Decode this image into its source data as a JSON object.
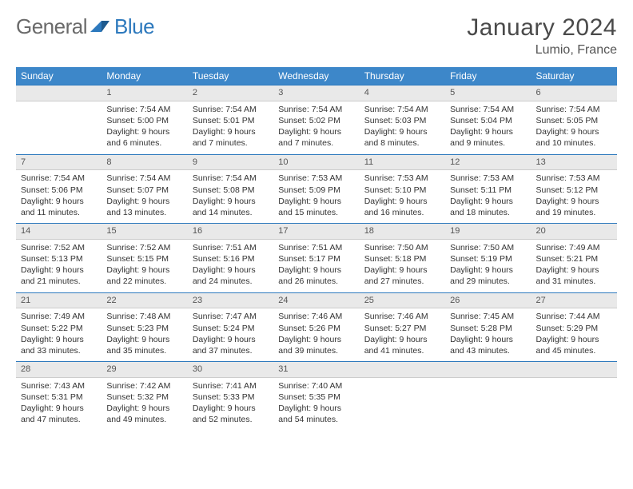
{
  "logo": {
    "word1": "General",
    "word2": "Blue",
    "accent_color": "#2d79bd",
    "grey_color": "#6a6a6a"
  },
  "title": "January 2024",
  "location": "Lumio, France",
  "colors": {
    "header_bg": "#3d87c9",
    "header_text": "#ffffff",
    "divider_blue": "#2d79bd",
    "daynum_bg": "#e9e9e9",
    "text": "#333333"
  },
  "weekdays": [
    "Sunday",
    "Monday",
    "Tuesday",
    "Wednesday",
    "Thursday",
    "Friday",
    "Saturday"
  ],
  "first_weekday_index": 1,
  "days": [
    {
      "n": 1,
      "sunrise": "7:54 AM",
      "sunset": "5:00 PM",
      "daylight": "9 hours and 6 minutes."
    },
    {
      "n": 2,
      "sunrise": "7:54 AM",
      "sunset": "5:01 PM",
      "daylight": "9 hours and 7 minutes."
    },
    {
      "n": 3,
      "sunrise": "7:54 AM",
      "sunset": "5:02 PM",
      "daylight": "9 hours and 7 minutes."
    },
    {
      "n": 4,
      "sunrise": "7:54 AM",
      "sunset": "5:03 PM",
      "daylight": "9 hours and 8 minutes."
    },
    {
      "n": 5,
      "sunrise": "7:54 AM",
      "sunset": "5:04 PM",
      "daylight": "9 hours and 9 minutes."
    },
    {
      "n": 6,
      "sunrise": "7:54 AM",
      "sunset": "5:05 PM",
      "daylight": "9 hours and 10 minutes."
    },
    {
      "n": 7,
      "sunrise": "7:54 AM",
      "sunset": "5:06 PM",
      "daylight": "9 hours and 11 minutes."
    },
    {
      "n": 8,
      "sunrise": "7:54 AM",
      "sunset": "5:07 PM",
      "daylight": "9 hours and 13 minutes."
    },
    {
      "n": 9,
      "sunrise": "7:54 AM",
      "sunset": "5:08 PM",
      "daylight": "9 hours and 14 minutes."
    },
    {
      "n": 10,
      "sunrise": "7:53 AM",
      "sunset": "5:09 PM",
      "daylight": "9 hours and 15 minutes."
    },
    {
      "n": 11,
      "sunrise": "7:53 AM",
      "sunset": "5:10 PM",
      "daylight": "9 hours and 16 minutes."
    },
    {
      "n": 12,
      "sunrise": "7:53 AM",
      "sunset": "5:11 PM",
      "daylight": "9 hours and 18 minutes."
    },
    {
      "n": 13,
      "sunrise": "7:53 AM",
      "sunset": "5:12 PM",
      "daylight": "9 hours and 19 minutes."
    },
    {
      "n": 14,
      "sunrise": "7:52 AM",
      "sunset": "5:13 PM",
      "daylight": "9 hours and 21 minutes."
    },
    {
      "n": 15,
      "sunrise": "7:52 AM",
      "sunset": "5:15 PM",
      "daylight": "9 hours and 22 minutes."
    },
    {
      "n": 16,
      "sunrise": "7:51 AM",
      "sunset": "5:16 PM",
      "daylight": "9 hours and 24 minutes."
    },
    {
      "n": 17,
      "sunrise": "7:51 AM",
      "sunset": "5:17 PM",
      "daylight": "9 hours and 26 minutes."
    },
    {
      "n": 18,
      "sunrise": "7:50 AM",
      "sunset": "5:18 PM",
      "daylight": "9 hours and 27 minutes."
    },
    {
      "n": 19,
      "sunrise": "7:50 AM",
      "sunset": "5:19 PM",
      "daylight": "9 hours and 29 minutes."
    },
    {
      "n": 20,
      "sunrise": "7:49 AM",
      "sunset": "5:21 PM",
      "daylight": "9 hours and 31 minutes."
    },
    {
      "n": 21,
      "sunrise": "7:49 AM",
      "sunset": "5:22 PM",
      "daylight": "9 hours and 33 minutes."
    },
    {
      "n": 22,
      "sunrise": "7:48 AM",
      "sunset": "5:23 PM",
      "daylight": "9 hours and 35 minutes."
    },
    {
      "n": 23,
      "sunrise": "7:47 AM",
      "sunset": "5:24 PM",
      "daylight": "9 hours and 37 minutes."
    },
    {
      "n": 24,
      "sunrise": "7:46 AM",
      "sunset": "5:26 PM",
      "daylight": "9 hours and 39 minutes."
    },
    {
      "n": 25,
      "sunrise": "7:46 AM",
      "sunset": "5:27 PM",
      "daylight": "9 hours and 41 minutes."
    },
    {
      "n": 26,
      "sunrise": "7:45 AM",
      "sunset": "5:28 PM",
      "daylight": "9 hours and 43 minutes."
    },
    {
      "n": 27,
      "sunrise": "7:44 AM",
      "sunset": "5:29 PM",
      "daylight": "9 hours and 45 minutes."
    },
    {
      "n": 28,
      "sunrise": "7:43 AM",
      "sunset": "5:31 PM",
      "daylight": "9 hours and 47 minutes."
    },
    {
      "n": 29,
      "sunrise": "7:42 AM",
      "sunset": "5:32 PM",
      "daylight": "9 hours and 49 minutes."
    },
    {
      "n": 30,
      "sunrise": "7:41 AM",
      "sunset": "5:33 PM",
      "daylight": "9 hours and 52 minutes."
    },
    {
      "n": 31,
      "sunrise": "7:40 AM",
      "sunset": "5:35 PM",
      "daylight": "9 hours and 54 minutes."
    }
  ],
  "labels": {
    "sunrise": "Sunrise:",
    "sunset": "Sunset:",
    "daylight": "Daylight:"
  }
}
